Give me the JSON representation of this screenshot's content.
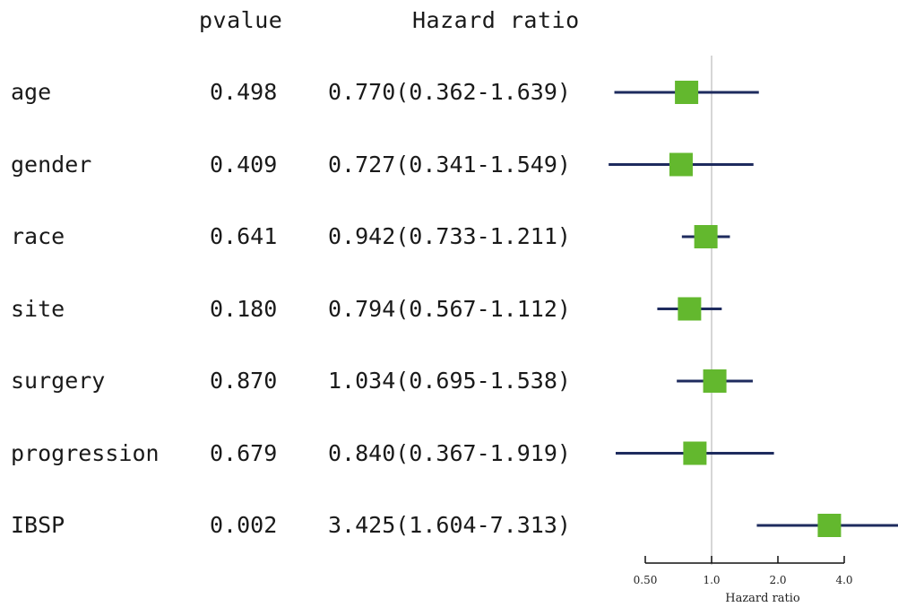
{
  "headers": {
    "pvalue": "pvalue",
    "hazard_ratio": "Hazard ratio"
  },
  "colors": {
    "ci_line": "#1e2b5e",
    "box": "#63b82e",
    "ref_line": "#c8c8c8",
    "axis": "#111111"
  },
  "chart_data": {
    "type": "forest",
    "xscale": "log",
    "xlim": [
      0.5,
      4.0
    ],
    "reference_line": 1.0,
    "xticks": [
      0.5,
      1.0,
      2.0,
      4.0
    ],
    "xtick_labels": [
      "0.50",
      "1.0",
      "2.0",
      "4.0"
    ],
    "xlabel": "Hazard ratio",
    "rows": [
      {
        "variable": "age",
        "pvalue": "0.498",
        "hr_text": "0.770(0.362-1.639)",
        "hr": 0.77,
        "lower": 0.362,
        "upper": 1.639
      },
      {
        "variable": "gender",
        "pvalue": "0.409",
        "hr_text": "0.727(0.341-1.549)",
        "hr": 0.727,
        "lower": 0.341,
        "upper": 1.549
      },
      {
        "variable": "race",
        "pvalue": "0.641",
        "hr_text": "0.942(0.733-1.211)",
        "hr": 0.942,
        "lower": 0.733,
        "upper": 1.211
      },
      {
        "variable": "site",
        "pvalue": "0.180",
        "hr_text": "0.794(0.567-1.112)",
        "hr": 0.794,
        "lower": 0.567,
        "upper": 1.112
      },
      {
        "variable": "surgery",
        "pvalue": "0.870",
        "hr_text": "1.034(0.695-1.538)",
        "hr": 1.034,
        "lower": 0.695,
        "upper": 1.538
      },
      {
        "variable": "progression",
        "pvalue": "0.679",
        "hr_text": "0.840(0.367-1.919)",
        "hr": 0.84,
        "lower": 0.367,
        "upper": 1.919
      },
      {
        "variable": "IBSP",
        "pvalue": "0.002",
        "hr_text": "3.425(1.604-7.313)",
        "hr": 3.425,
        "lower": 1.604,
        "upper": 7.313
      }
    ]
  }
}
